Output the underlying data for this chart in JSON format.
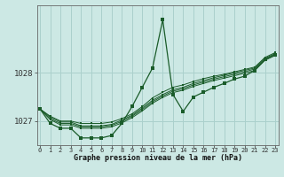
{
  "title": "Graphe pression niveau de la mer (hPa)",
  "bg_color": "#cce8e4",
  "grid_color": "#aad0cc",
  "line_color": "#1a5c2a",
  "x_labels": [
    "0",
    "1",
    "2",
    "3",
    "4",
    "5",
    "6",
    "7",
    "8",
    "9",
    "10",
    "11",
    "12",
    "13",
    "14",
    "15",
    "16",
    "17",
    "18",
    "19",
    "20",
    "21",
    "22",
    "23"
  ],
  "y_ticks": [
    1027,
    1028
  ],
  "ylim": [
    1026.5,
    1029.4
  ],
  "xlim": [
    -0.3,
    23.3
  ],
  "main_series": [
    1027.25,
    1026.95,
    1026.85,
    1026.85,
    1026.65,
    1026.65,
    1026.65,
    1026.7,
    1026.95,
    1027.3,
    1027.7,
    1028.1,
    1029.1,
    1027.55,
    1027.2,
    1027.5,
    1027.6,
    1027.7,
    1027.78,
    1027.87,
    1027.93,
    1028.05,
    1028.28,
    1028.38
  ],
  "ensemble_lines": [
    [
      1027.25,
      1027.1,
      1027.0,
      1027.0,
      1026.95,
      1026.95,
      1026.95,
      1026.98,
      1027.05,
      1027.15,
      1027.3,
      1027.48,
      1027.6,
      1027.7,
      1027.75,
      1027.82,
      1027.88,
      1027.93,
      1027.97,
      1028.02,
      1028.07,
      1028.12,
      1028.32,
      1028.42
    ],
    [
      1027.25,
      1027.08,
      1026.98,
      1026.98,
      1026.9,
      1026.9,
      1026.9,
      1026.93,
      1027.02,
      1027.12,
      1027.27,
      1027.43,
      1027.55,
      1027.65,
      1027.7,
      1027.78,
      1027.84,
      1027.9,
      1027.95,
      1028.0,
      1028.05,
      1028.1,
      1028.3,
      1028.4
    ],
    [
      1027.25,
      1027.05,
      1026.95,
      1026.95,
      1026.88,
      1026.88,
      1026.88,
      1026.91,
      1026.99,
      1027.1,
      1027.24,
      1027.4,
      1027.52,
      1027.62,
      1027.67,
      1027.75,
      1027.81,
      1027.87,
      1027.92,
      1027.97,
      1028.02,
      1028.08,
      1028.28,
      1028.38
    ],
    [
      1027.25,
      1027.03,
      1026.92,
      1026.92,
      1026.85,
      1026.85,
      1026.85,
      1026.88,
      1026.96,
      1027.07,
      1027.21,
      1027.37,
      1027.49,
      1027.59,
      1027.64,
      1027.72,
      1027.78,
      1027.84,
      1027.89,
      1027.94,
      1027.99,
      1028.05,
      1028.26,
      1028.36
    ]
  ]
}
